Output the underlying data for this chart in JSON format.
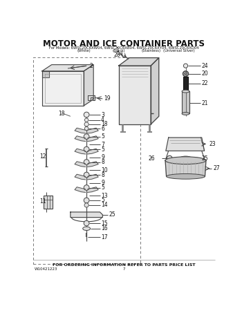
{
  "title": "MOTOR AND ICE CONTAINER PARTS",
  "subtitle1": "For Models: 6WSC20C6XW04, 6WSC20C6XB04, 6WSC20C6XY04, 6WSC20C6XD04",
  "subtitle2_parts": [
    "(White)",
    "(Black)",
    "(Stainless)",
    "(Universal Silver)"
  ],
  "footer_center": "FOR ORDERING INFORMATION REFER TO PARTS PRICE LIST",
  "footer_left": "W10421223",
  "footer_page": "7",
  "bg_color": "#ffffff",
  "line_color": "#444444",
  "text_color": "#111111"
}
